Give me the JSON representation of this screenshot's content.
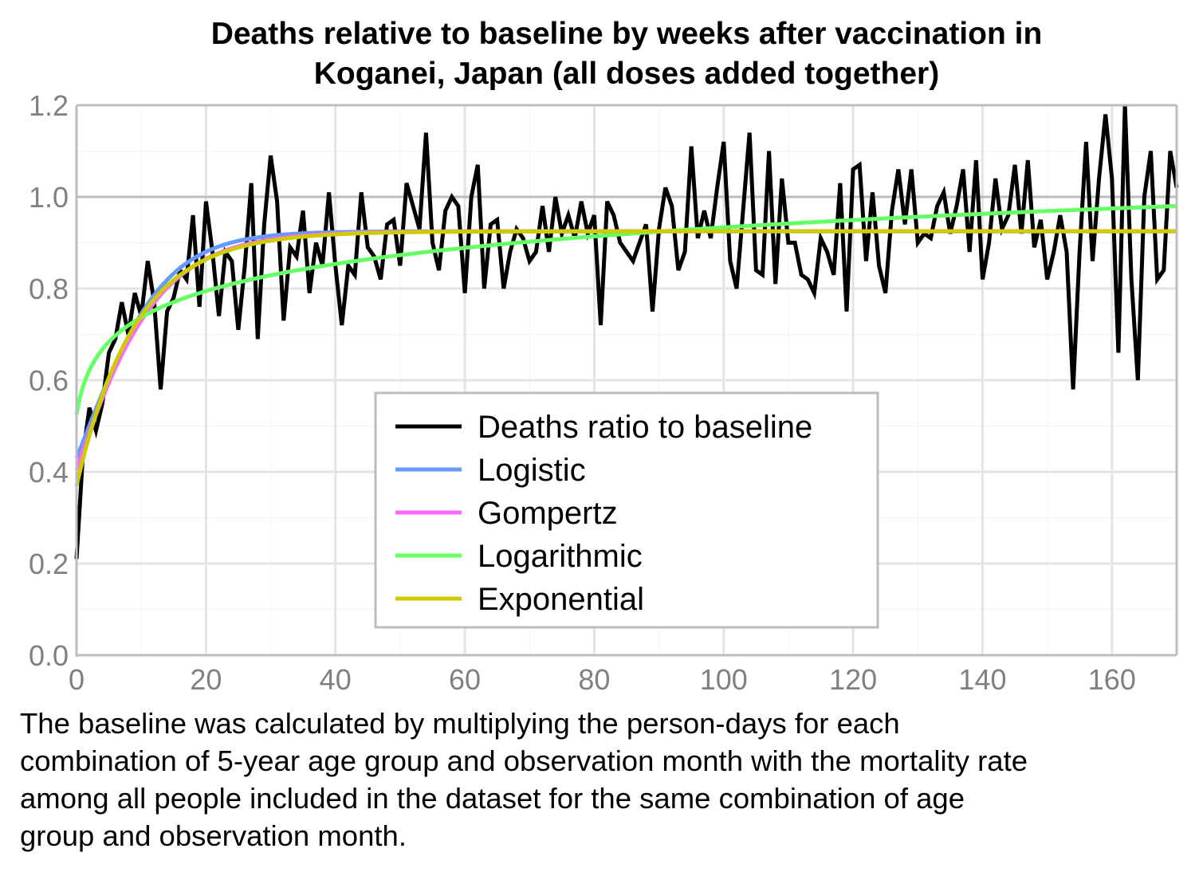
{
  "chart_data": {
    "type": "line",
    "title_lines": [
      "Deaths relative to baseline by weeks after vaccination in",
      "Koganei, Japan (all doses added together)"
    ],
    "title": "Deaths relative to baseline by weeks after vaccination in Koganei, Japan (all doses added together)",
    "xlabel": "",
    "ylabel": "",
    "xlim": [
      0,
      170
    ],
    "ylim": [
      0,
      1.2
    ],
    "x_ticks": [
      0,
      20,
      40,
      60,
      80,
      100,
      120,
      140,
      160
    ],
    "x_tick_labels": [
      "0",
      "20",
      "40",
      "60",
      "80",
      "100",
      "120",
      "140",
      "160"
    ],
    "y_ticks": [
      0.0,
      0.2,
      0.4,
      0.6,
      0.8,
      1.0,
      1.2
    ],
    "y_tick_labels": [
      "0.0",
      "0.2",
      "0.4",
      "0.6",
      "0.8",
      "1.0",
      "1.2"
    ],
    "grid": true,
    "legend_position": "center",
    "series": [
      {
        "name": "Deaths ratio to baseline",
        "color": "#000000",
        "kind": "observed",
        "x_start": 0,
        "x_step": 1,
        "values": [
          0.21,
          0.44,
          0.54,
          0.49,
          0.55,
          0.66,
          0.69,
          0.77,
          0.7,
          0.79,
          0.74,
          0.86,
          0.77,
          0.58,
          0.75,
          0.78,
          0.84,
          0.82,
          0.96,
          0.76,
          0.99,
          0.88,
          0.74,
          0.88,
          0.86,
          0.71,
          0.85,
          1.03,
          0.69,
          0.94,
          1.09,
          0.99,
          0.73,
          0.89,
          0.87,
          0.97,
          0.79,
          0.9,
          0.85,
          1.01,
          0.85,
          0.72,
          0.85,
          0.83,
          1.01,
          0.89,
          0.87,
          0.82,
          0.94,
          0.95,
          0.85,
          1.03,
          0.98,
          0.93,
          1.14,
          0.9,
          0.84,
          0.97,
          1.0,
          0.98,
          0.79,
          1.0,
          1.07,
          0.8,
          0.94,
          0.95,
          0.8,
          0.88,
          0.93,
          0.91,
          0.86,
          0.88,
          0.98,
          0.88,
          1.0,
          0.92,
          0.96,
          0.91,
          0.99,
          0.92,
          0.96,
          0.72,
          0.99,
          0.96,
          0.9,
          0.88,
          0.86,
          0.9,
          0.94,
          0.75,
          0.93,
          1.02,
          0.98,
          0.84,
          0.88,
          1.11,
          0.91,
          0.97,
          0.91,
          1.02,
          1.12,
          0.86,
          0.8,
          0.97,
          1.14,
          0.84,
          0.83,
          1.1,
          0.81,
          1.04,
          0.9,
          0.9,
          0.83,
          0.82,
          0.79,
          0.91,
          0.88,
          0.83,
          1.03,
          0.75,
          1.06,
          1.07,
          0.86,
          1.01,
          0.85,
          0.79,
          0.97,
          1.06,
          0.94,
          1.06,
          0.9,
          0.92,
          0.91,
          0.98,
          1.01,
          0.92,
          0.98,
          1.06,
          0.88,
          1.08,
          0.82,
          0.9,
          1.04,
          0.93,
          0.96,
          1.07,
          0.92,
          1.08,
          0.89,
          0.95,
          0.82,
          0.88,
          0.96,
          0.88,
          0.58,
          0.88,
          1.12,
          0.86,
          1.04,
          1.18,
          1.04,
          0.66,
          1.2,
          0.82,
          0.6,
          1.0,
          1.1,
          0.82,
          0.84,
          1.1,
          1.02
        ]
      },
      {
        "name": "Logistic",
        "color": "#6699ff",
        "kind": "fit",
        "model": "logistic",
        "params": {
          "K": 0.925,
          "P0": 0.43,
          "r": 0.156
        }
      },
      {
        "name": "Gompertz",
        "color": "#ff66ff",
        "kind": "fit",
        "model": "gompertz",
        "params": {
          "A": 0.925,
          "y0": 0.405,
          "c": 0.125
        }
      },
      {
        "name": "Logarithmic",
        "color": "#66ff66",
        "kind": "fit",
        "model": "logarithmic",
        "params": {
          "a": 0.525,
          "b": 0.0885
        }
      },
      {
        "name": "Exponential",
        "color": "#cccc00",
        "kind": "fit",
        "model": "exponential",
        "params": {
          "A": 0.925,
          "y0": 0.37,
          "k": 0.11
        }
      }
    ],
    "note_lines": [
      "The baseline was calculated by multiplying the person-days for each",
      "combination of 5-year age group and observation month with the mortality rate",
      "among all people included in the dataset for the same combination of age",
      "group and observation month."
    ],
    "note": "The baseline was calculated by multiplying the person-days for each combination of 5-year age group and observation month with the mortality rate among all people included in the dataset for the same combination of age group and observation month."
  }
}
